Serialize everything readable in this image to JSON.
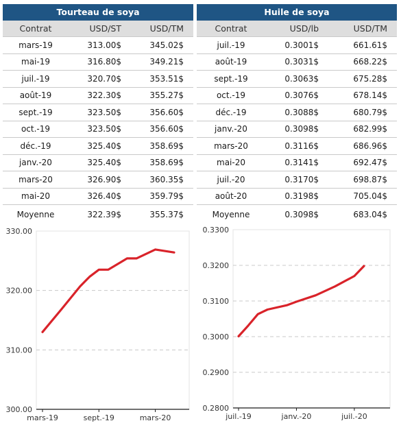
{
  "tables": [
    {
      "title": "Tourteau de soya",
      "headers": [
        "Contrat",
        "USD/ST",
        "USD/TM"
      ],
      "rows": [
        [
          "mars-19",
          "313.00$",
          "345.02$"
        ],
        [
          "mai-19",
          "316.80$",
          "349.21$"
        ],
        [
          "juil.-19",
          "320.70$",
          "353.51$"
        ],
        [
          "août-19",
          "322.30$",
          "355.27$"
        ],
        [
          "sept.-19",
          "323.50$",
          "356.60$"
        ],
        [
          "oct.-19",
          "323.50$",
          "356.60$"
        ],
        [
          "déc.-19",
          "325.40$",
          "358.69$"
        ],
        [
          "janv.-20",
          "325.40$",
          "358.69$"
        ],
        [
          "mars-20",
          "326.90$",
          "360.35$"
        ],
        [
          "mai-20",
          "326.40$",
          "359.79$"
        ]
      ],
      "average": [
        "Moyenne",
        "322.39$",
        "355.37$"
      ]
    },
    {
      "title": "Huile de soya",
      "headers": [
        "Contrat",
        "USD/lb",
        "USD/TM"
      ],
      "rows": [
        [
          "juil.-19",
          "0.3001$",
          "661.61$"
        ],
        [
          "août-19",
          "0.3031$",
          "668.22$"
        ],
        [
          "sept.-19",
          "0.3063$",
          "675.28$"
        ],
        [
          "oct.-19",
          "0.3076$",
          "678.14$"
        ],
        [
          "déc.-19",
          "0.3088$",
          "680.79$"
        ],
        [
          "janv.-20",
          "0.3098$",
          "682.99$"
        ],
        [
          "mars-20",
          "0.3116$",
          "686.96$"
        ],
        [
          "mai-20",
          "0.3141$",
          "692.47$"
        ],
        [
          "juil.-20",
          "0.3170$",
          "698.87$"
        ],
        [
          "août-20",
          "0.3198$",
          "705.04$"
        ]
      ],
      "average": [
        "Moyenne",
        "0.3098$",
        "683.04$"
      ]
    }
  ],
  "chart_data": [
    {
      "type": "line",
      "x": [
        "mars-19",
        "mai-19",
        "juil.-19",
        "août-19",
        "sept.-19",
        "oct.-19",
        "déc.-19",
        "janv.-20",
        "mars-20",
        "mai-20"
      ],
      "x_dates": [
        "2019-03",
        "2019-05",
        "2019-07",
        "2019-08",
        "2019-09",
        "2019-10",
        "2019-12",
        "2020-01",
        "2020-03",
        "2020-05"
      ],
      "values": [
        313.0,
        316.8,
        320.7,
        322.3,
        323.5,
        323.5,
        325.4,
        325.4,
        326.9,
        326.4
      ],
      "xticks": [
        "mars-19",
        "sept.-19",
        "mars-20"
      ],
      "yticks": [
        "300.00",
        "310.00",
        "320.00",
        "330.00"
      ],
      "ylim": [
        300,
        330
      ],
      "grid": true,
      "line_color": "#d9232a"
    },
    {
      "type": "line",
      "x": [
        "juil.-19",
        "août-19",
        "sept.-19",
        "oct.-19",
        "déc.-19",
        "janv.-20",
        "mars-20",
        "mai-20",
        "juil.-20",
        "août-20"
      ],
      "x_dates": [
        "2019-07",
        "2019-08",
        "2019-09",
        "2019-10",
        "2019-12",
        "2020-01",
        "2020-03",
        "2020-05",
        "2020-07",
        "2020-08"
      ],
      "values": [
        0.3001,
        0.3031,
        0.3063,
        0.3076,
        0.3088,
        0.3098,
        0.3116,
        0.3141,
        0.317,
        0.3198
      ],
      "xticks": [
        "juil.-19",
        "janv.-20",
        "juil.-20"
      ],
      "yticks": [
        "0.2800",
        "0.2900",
        "0.3000",
        "0.3100",
        "0.3200",
        "0.3300"
      ],
      "ylim": [
        0.28,
        0.33
      ],
      "grid": true,
      "line_color": "#d9232a"
    }
  ]
}
